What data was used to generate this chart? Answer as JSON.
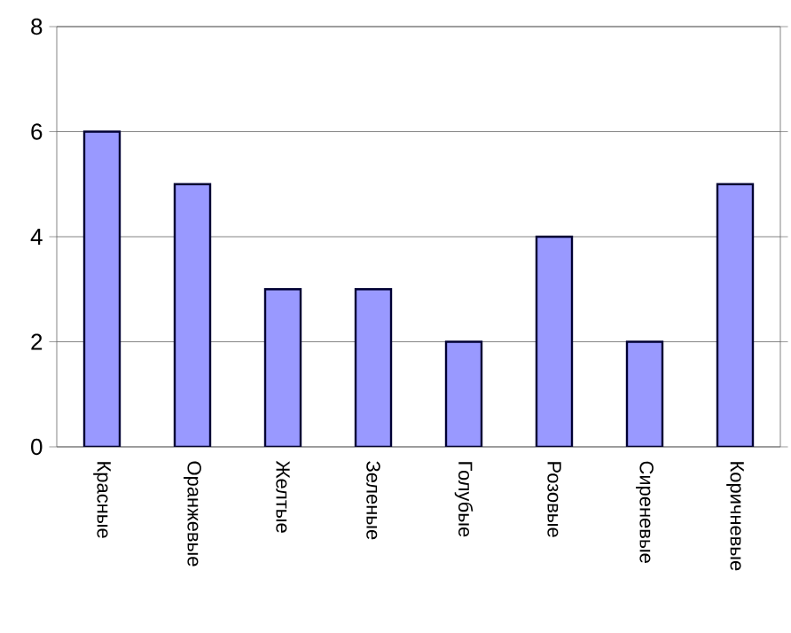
{
  "chart_data": {
    "type": "bar",
    "categories": [
      "Красные",
      "Оранжевые",
      "Желтые",
      "Зеленые",
      "Голубые",
      "Розовые",
      "Сиреневые",
      "Коричневые"
    ],
    "values": [
      6,
      5,
      3,
      3,
      2,
      4,
      2,
      5
    ],
    "color": "#9999ff",
    "ylim": [
      0,
      8
    ],
    "yticks": [
      0,
      2,
      4,
      6,
      8
    ],
    "grid": "y"
  }
}
